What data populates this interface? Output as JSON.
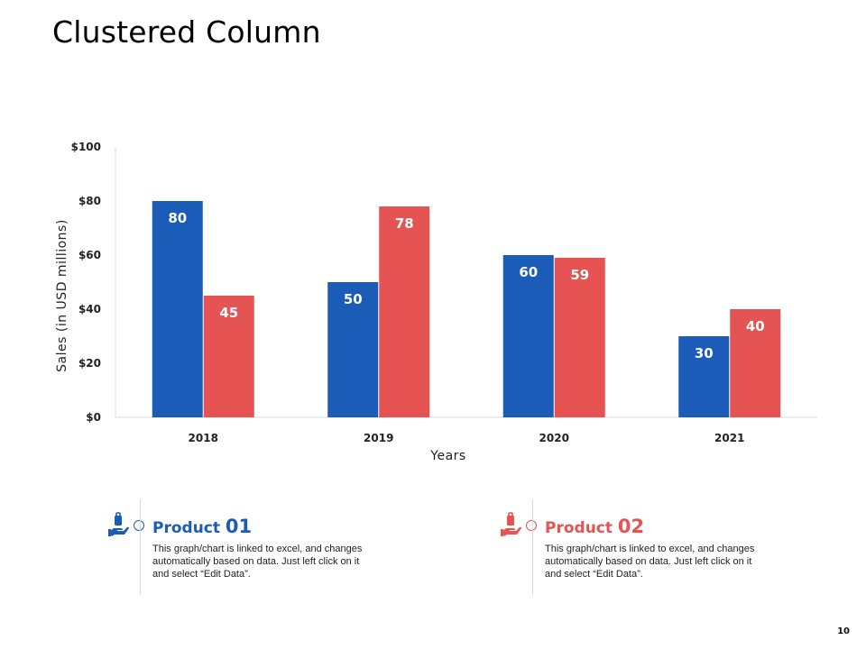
{
  "slide": {
    "title": "Clustered Column",
    "page_number": "10"
  },
  "colors": {
    "product_01": "#1a5cb8",
    "product_02": "#e55353"
  },
  "legend": [
    {
      "label": "Product ",
      "number": "01",
      "icon": "hand-holding-bag-icon",
      "description": "This graph/chart is linked to excel, and changes automatically based on data.  Just left click on it and select “Edit Data”."
    },
    {
      "label": "Product ",
      "number": "02",
      "icon": "hand-holding-bag-icon",
      "description": "This graph/chart is linked to excel, and changes automatically based on data.  Just left click on it and select “Edit Data”."
    }
  ],
  "chart_data": {
    "type": "bar",
    "title": "",
    "xlabel": "Years",
    "ylabel": "Sales (in USD millions)",
    "categories": [
      "2018",
      "2019",
      "2020",
      "2021"
    ],
    "series": [
      {
        "name": "Product 01",
        "values": [
          80,
          50,
          60,
          30
        ]
      },
      {
        "name": "Product 02",
        "values": [
          45,
          78,
          59,
          40
        ]
      }
    ],
    "ylim": [
      0,
      100
    ],
    "yticks": [
      0,
      20,
      40,
      60,
      80,
      100
    ],
    "ytick_labels": [
      "$0",
      "$20",
      "$40",
      "$60",
      "$80",
      "$100"
    ],
    "grid": false,
    "data_labels": true
  }
}
